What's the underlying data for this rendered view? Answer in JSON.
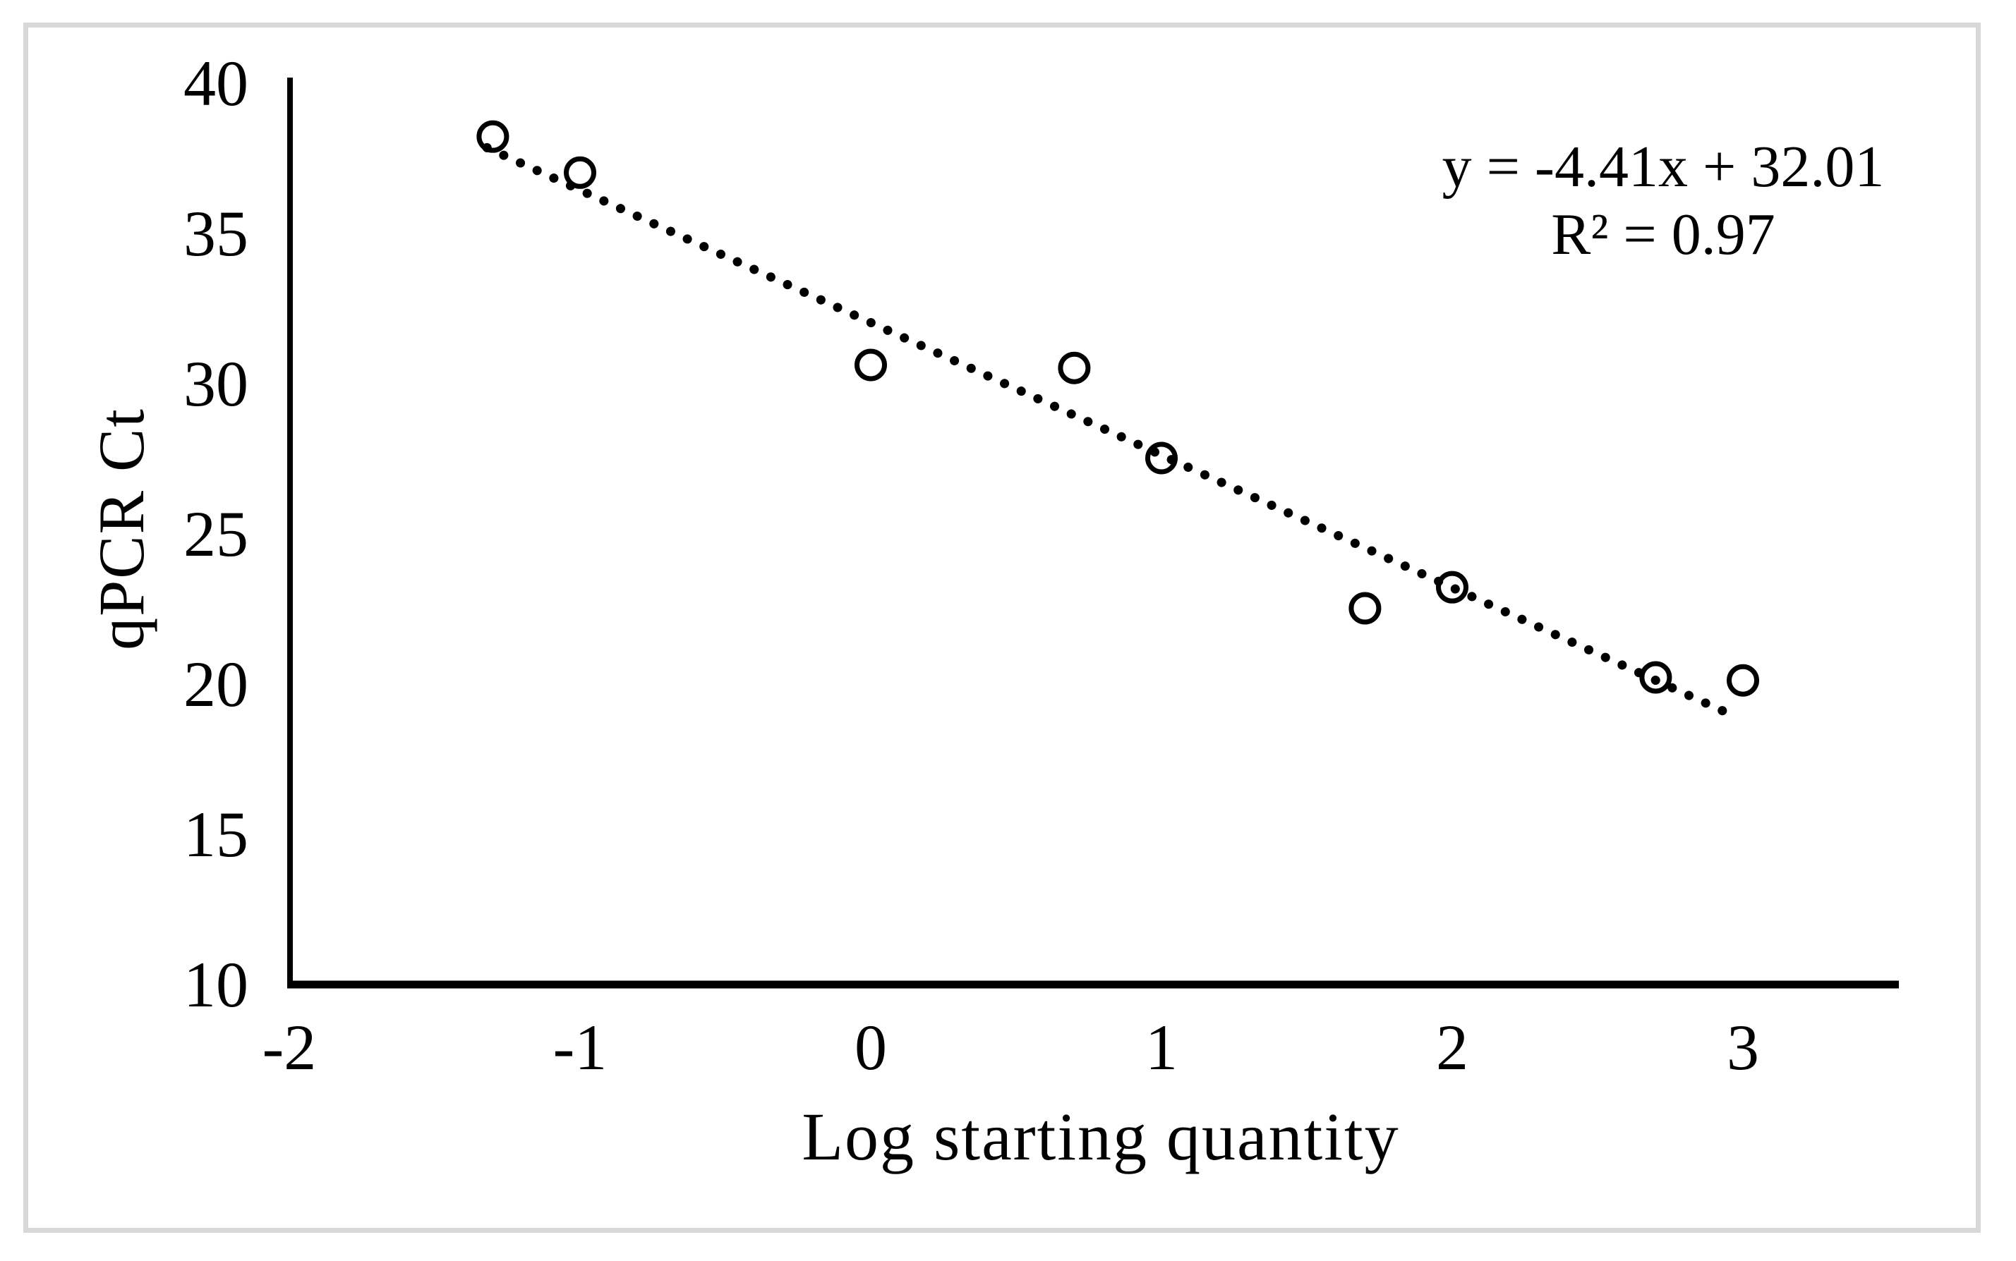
{
  "figure": {
    "background": "#ffffff",
    "border_color": "#d8d8d8",
    "ink_color": "#000000"
  },
  "chart_data": {
    "type": "scatter",
    "title": "",
    "xlabel": "Log starting quantity",
    "ylabel": "qPCR Ct",
    "xlim": [
      -2,
      3.54
    ],
    "ylim": [
      10,
      40
    ],
    "x_ticks": [
      -2,
      -1,
      0,
      1,
      2,
      3
    ],
    "y_ticks": [
      40,
      35,
      30,
      25,
      20,
      15,
      10
    ],
    "grid": false,
    "legend": false,
    "marker": {
      "shape": "circle-open",
      "color": "#000000"
    },
    "points": [
      {
        "x": -1.3,
        "y": 38.2
      },
      {
        "x": -1.0,
        "y": 37.0
      },
      {
        "x": 0.0,
        "y": 30.6
      },
      {
        "x": 0.7,
        "y": 30.5
      },
      {
        "x": 1.0,
        "y": 27.5
      },
      {
        "x": 1.7,
        "y": 22.5
      },
      {
        "x": 2.0,
        "y": 23.2
      },
      {
        "x": 2.7,
        "y": 20.2
      },
      {
        "x": 3.0,
        "y": 20.1
      }
    ],
    "trendline": {
      "slope": -4.41,
      "intercept": 32.01,
      "x_start": -1.32,
      "x_end": 2.98,
      "style": "dotted",
      "color": "#000000"
    },
    "annotation": {
      "line1": "y = -4.41x + 32.01",
      "line2": "R² = 0.97"
    }
  }
}
